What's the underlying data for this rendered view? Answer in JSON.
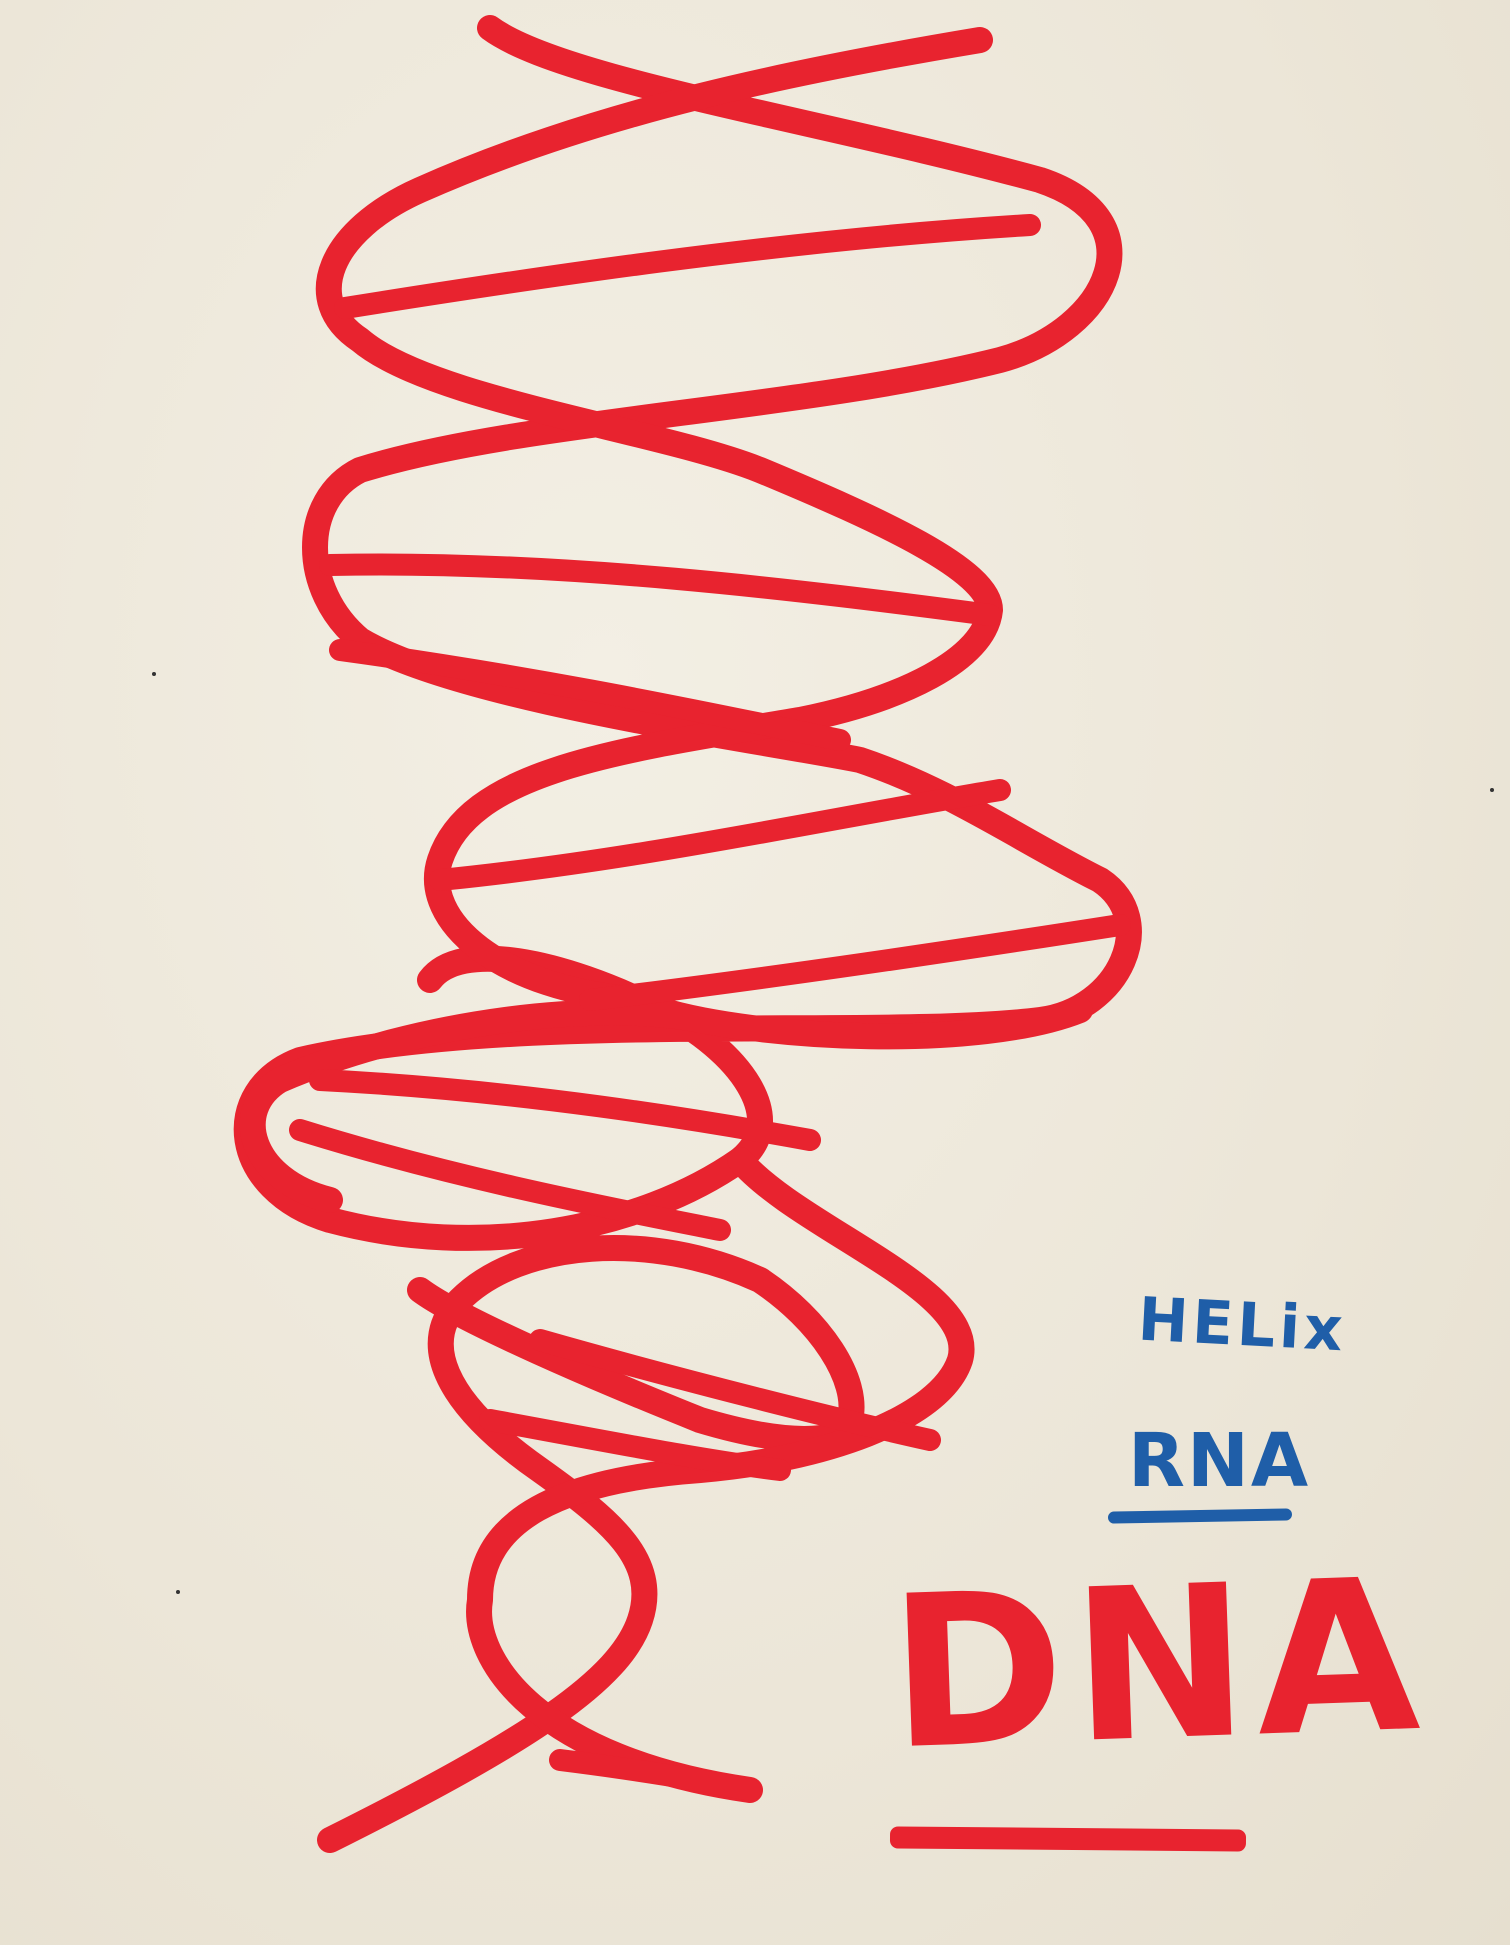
{
  "artwork": {
    "subject": "dna-double-helix",
    "labels": {
      "helix": "HELix",
      "rna": "RNA",
      "dna": "DNA"
    }
  },
  "colors": {
    "paper": "#efe9dc",
    "red_paint": "#e8232f",
    "blue_ink": "#1f5ea8"
  }
}
